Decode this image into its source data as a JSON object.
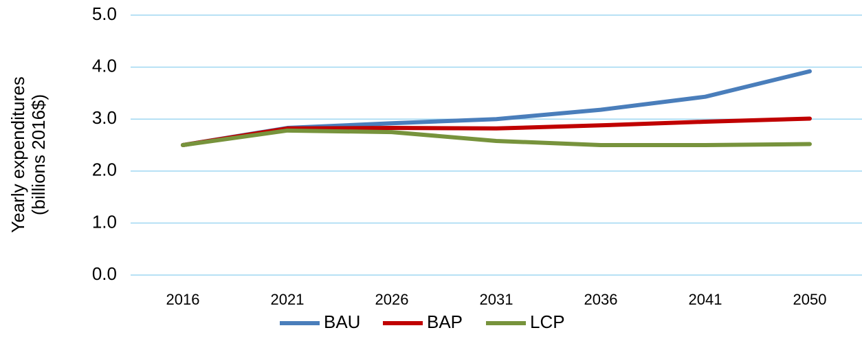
{
  "chart_data": {
    "type": "line",
    "y_label": [
      "Yearly expenditures",
      "(billions 2016$)"
    ],
    "categories": [
      "2016",
      "2021",
      "2026",
      "2031",
      "2036",
      "2041",
      "2050"
    ],
    "series": [
      {
        "name": "BAU",
        "color": "#4a7ebb",
        "values": [
          2.5,
          2.83,
          2.92,
          3.0,
          3.18,
          3.43,
          3.92
        ]
      },
      {
        "name": "BAP",
        "color": "#c00000",
        "values": [
          2.5,
          2.82,
          2.83,
          2.82,
          2.88,
          2.95,
          3.01
        ]
      },
      {
        "name": "LCP",
        "color": "#77933c",
        "values": [
          2.5,
          2.78,
          2.75,
          2.58,
          2.5,
          2.5,
          2.52
        ]
      }
    ],
    "ylim": [
      0,
      5
    ],
    "yticks": [
      {
        "value": 0,
        "label": "0.0"
      },
      {
        "value": 1,
        "label": "1.0"
      },
      {
        "value": 2,
        "label": "2.0"
      },
      {
        "value": 3,
        "label": "3.0"
      },
      {
        "value": 4,
        "label": "4.0"
      },
      {
        "value": 5,
        "label": "5.0"
      }
    ],
    "grid": true,
    "legend": "bottom"
  }
}
